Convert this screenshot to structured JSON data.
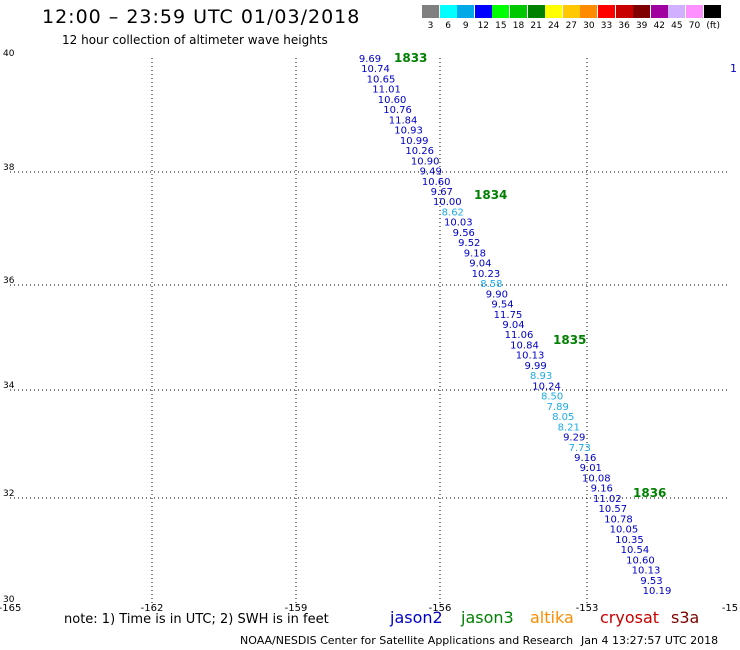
{
  "header": {
    "title": "12:00 – 23:59 UTC 01/03/2018",
    "subtitle": "12 hour collection of altimeter wave heights"
  },
  "scale": {
    "unit": "(ft)",
    "entries": [
      {
        "label": "3",
        "color": "#808080"
      },
      {
        "label": "6",
        "color": "#00ffff"
      },
      {
        "label": "9",
        "color": "#00a8e8"
      },
      {
        "label": "12",
        "color": "#0000ff"
      },
      {
        "label": "15",
        "color": "#00ff00"
      },
      {
        "label": "18",
        "color": "#00c800"
      },
      {
        "label": "21",
        "color": "#008000"
      },
      {
        "label": "24",
        "color": "#ffff00"
      },
      {
        "label": "27",
        "color": "#ffc800"
      },
      {
        "label": "30",
        "color": "#ff8c00"
      },
      {
        "label": "33",
        "color": "#ff0000"
      },
      {
        "label": "36",
        "color": "#c80000"
      },
      {
        "label": "39",
        "color": "#800000"
      },
      {
        "label": "42",
        "color": "#a000a0"
      },
      {
        "label": "45",
        "color": "#d0b0ff"
      },
      {
        "label": "70",
        "color": "#ff90ff"
      },
      {
        "label": "",
        "color": "#000000"
      }
    ]
  },
  "axes": {
    "x_ticks": [
      "-165",
      "-162",
      "-159",
      "-156",
      "-153",
      "-15"
    ],
    "y_ticks": [
      "40",
      "38",
      "36",
      "34",
      "32",
      "30"
    ]
  },
  "track": {
    "time_labels": [
      "1833",
      "1834",
      "1835",
      "1836"
    ],
    "observations": [
      {
        "v": "9.69",
        "c": "#0000c8"
      },
      {
        "v": "10.74",
        "c": "#0000c8"
      },
      {
        "v": "10.65",
        "c": "#0000c8"
      },
      {
        "v": "11.01",
        "c": "#0000c8"
      },
      {
        "v": "10.60",
        "c": "#0000c8"
      },
      {
        "v": "10.76",
        "c": "#0000c8"
      },
      {
        "v": "11.84",
        "c": "#0000c8"
      },
      {
        "v": "10.93",
        "c": "#0000c8"
      },
      {
        "v": "10.99",
        "c": "#0000c8"
      },
      {
        "v": "10.26",
        "c": "#0000c8"
      },
      {
        "v": "10.90",
        "c": "#0000c8"
      },
      {
        "v": "9.49",
        "c": "#0000c8"
      },
      {
        "v": "10.60",
        "c": "#0000c8"
      },
      {
        "v": "9.67",
        "c": "#0000c8"
      },
      {
        "v": "10.00",
        "c": "#0000c8"
      },
      {
        "v": "8.62",
        "c": "#1eaaeb"
      },
      {
        "v": "10.03",
        "c": "#0000c8"
      },
      {
        "v": "9.56",
        "c": "#0000c8"
      },
      {
        "v": "9.52",
        "c": "#0000c8"
      },
      {
        "v": "9.18",
        "c": "#0000c8"
      },
      {
        "v": "9.04",
        "c": "#0000c8"
      },
      {
        "v": "10.23",
        "c": "#0000c8"
      },
      {
        "v": "8.58",
        "c": "#1eaaeb"
      },
      {
        "v": "9.90",
        "c": "#0000c8"
      },
      {
        "v": "9.54",
        "c": "#0000c8"
      },
      {
        "v": "11.75",
        "c": "#0000c8"
      },
      {
        "v": "9.04",
        "c": "#0000c8"
      },
      {
        "v": "11.06",
        "c": "#0000c8"
      },
      {
        "v": "10.84",
        "c": "#0000c8"
      },
      {
        "v": "10.13",
        "c": "#0000c8"
      },
      {
        "v": "9.99",
        "c": "#0000c8"
      },
      {
        "v": "8.93",
        "c": "#1eaaeb"
      },
      {
        "v": "10.24",
        "c": "#0000c8"
      },
      {
        "v": "8.50",
        "c": "#1eaaeb"
      },
      {
        "v": "7.89",
        "c": "#1eaaeb"
      },
      {
        "v": "8.05",
        "c": "#1eaaeb"
      },
      {
        "v": "8.21",
        "c": "#1eaaeb"
      },
      {
        "v": "9.29",
        "c": "#0000c8"
      },
      {
        "v": "7.73",
        "c": "#1eaaeb"
      },
      {
        "v": "9.16",
        "c": "#0000c8"
      },
      {
        "v": "9.01",
        "c": "#0000c8"
      },
      {
        "v": "10.08",
        "c": "#0000c8"
      },
      {
        "v": "9.16",
        "c": "#0000c8"
      },
      {
        "v": "11.02",
        "c": "#0000c8"
      },
      {
        "v": "10.57",
        "c": "#0000c8"
      },
      {
        "v": "10.78",
        "c": "#0000c8"
      },
      {
        "v": "10.05",
        "c": "#0000c8"
      },
      {
        "v": "10.35",
        "c": "#0000c8"
      },
      {
        "v": "10.54",
        "c": "#0000c8"
      },
      {
        "v": "10.60",
        "c": "#0000c8"
      },
      {
        "v": "10.13",
        "c": "#0000c8"
      },
      {
        "v": "9.53",
        "c": "#0000c8"
      },
      {
        "v": "10.19",
        "c": "#0000c8"
      }
    ]
  },
  "edge_mark": "1",
  "legend": {
    "note": "note: 1) Time is in UTC; 2) SWH is in feet",
    "satellites": [
      {
        "name": "jason2",
        "color": "#0000c8"
      },
      {
        "name": "jason3",
        "color": "#008000"
      },
      {
        "name": "altika",
        "color": "#ff8c00"
      },
      {
        "name": "cryosat",
        "color": "#c80000"
      },
      {
        "name": "s3a",
        "color": "#800000"
      }
    ]
  },
  "footer": {
    "credit": "NOAA/NESDIS Center for Satellite Applications and Research",
    "timestamp": "Jan  4 13:27:57 UTC 2018"
  }
}
